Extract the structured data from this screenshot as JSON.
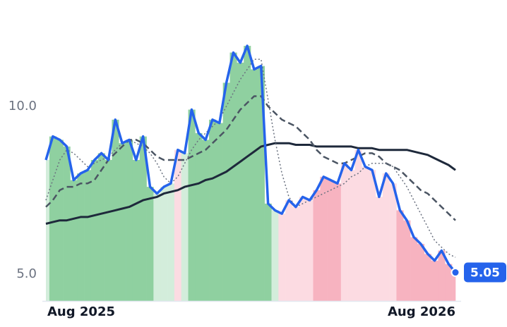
{
  "chart_data": {
    "type": "line",
    "categories": [
      "Aug 2025",
      null,
      null,
      null,
      null,
      null,
      null,
      null,
      null,
      null,
      null,
      null,
      null,
      null,
      null,
      null,
      null,
      null,
      null,
      null,
      null,
      null,
      null,
      null,
      null,
      null,
      null,
      null,
      null,
      null,
      null,
      null,
      null,
      null,
      null,
      null,
      null,
      null,
      null,
      null,
      null,
      null,
      null,
      null,
      null,
      null,
      null,
      null,
      null,
      null,
      null,
      null,
      null,
      null,
      null,
      null,
      null,
      null,
      null,
      "Aug 2026"
    ],
    "ylim": [
      4.2,
      12.2
    ],
    "yticks": [
      {
        "value": 5,
        "label": "5.0"
      },
      {
        "value": 10,
        "label": "10.0"
      }
    ],
    "grid": false,
    "bar_colors": [
      "#d3eddb",
      "#8fd0a0",
      "#8fd0a0",
      "#8fd0a0",
      "#8fd0a0",
      "#8fd0a0",
      "#8fd0a0",
      "#8fd0a0",
      "#8fd0a0",
      "#8fd0a0",
      "#8fd0a0",
      "#8fd0a0",
      "#8fd0a0",
      "#8fd0a0",
      "#8fd0a0",
      "#8fd0a0",
      "#d3eddb",
      "#d3eddb",
      "#d3eddb",
      "#fcdbe2",
      "#d3eddb",
      "#8fd0a0",
      "#8fd0a0",
      "#8fd0a0",
      "#8fd0a0",
      "#8fd0a0",
      "#8fd0a0",
      "#8fd0a0",
      "#8fd0a0",
      "#8fd0a0",
      "#8fd0a0",
      "#8fd0a0",
      "#8fd0a0",
      "#d3eddb",
      "#fcdbe2",
      "#fcdbe2",
      "#fcdbe2",
      "#fcdbe2",
      "#fcdbe2",
      "#f7b3c0",
      "#f7b3c0",
      "#f7b3c0",
      "#f7b3c0",
      "#fcdbe2",
      "#fcdbe2",
      "#fcdbe2",
      "#fcdbe2",
      "#fcdbe2",
      "#fcdbe2",
      "#fcdbe2",
      "#fcdbe2",
      "#f7b3c0",
      "#f7b3c0",
      "#f7b3c0",
      "#f7b3c0",
      "#f7b3c0",
      "#f7b3c0",
      "#f7b3c0",
      "#f7b3c0",
      "#f7b3c0"
    ],
    "series": [
      {
        "color": "#2563eb",
        "style": "solid",
        "width": 3.5,
        "values": [
          8.4,
          9.1,
          9.0,
          8.8,
          7.8,
          8.0,
          8.1,
          8.4,
          8.6,
          8.4,
          9.6,
          8.9,
          9.0,
          8.4,
          9.1,
          7.6,
          7.4,
          7.6,
          7.7,
          8.7,
          8.6,
          9.9,
          9.2,
          9.0,
          9.6,
          9.5,
          10.7,
          11.6,
          11.3,
          11.8,
          11.1,
          11.2,
          7.1,
          6.9,
          6.8,
          7.2,
          7.0,
          7.3,
          7.2,
          7.5,
          7.9,
          7.8,
          7.7,
          8.3,
          8.1,
          8.7,
          8.2,
          8.1,
          7.3,
          8.0,
          7.7,
          6.9,
          6.6,
          6.1,
          5.9,
          5.6,
          5.4,
          5.7,
          5.3,
          5.05
        ]
      },
      {
        "color": "#6b7280",
        "style": "dotted",
        "width": 1.5,
        "values": [
          7.2,
          7.8,
          8.4,
          8.7,
          8.6,
          8.4,
          8.2,
          8.3,
          8.4,
          8.5,
          8.7,
          8.9,
          9.0,
          8.9,
          8.8,
          8.6,
          8.3,
          7.9,
          7.7,
          7.9,
          8.3,
          8.7,
          9.0,
          9.2,
          9.4,
          9.6,
          10.0,
          10.4,
          10.8,
          11.1,
          11.4,
          11.4,
          10.2,
          9.0,
          8.0,
          7.3,
          7.0,
          7.1,
          7.2,
          7.3,
          7.4,
          7.5,
          7.6,
          7.7,
          7.9,
          8.0,
          8.2,
          8.3,
          8.3,
          8.3,
          8.2,
          7.9,
          7.6,
          7.2,
          6.8,
          6.4,
          6.0,
          5.8,
          5.6,
          5.5
        ]
      },
      {
        "color": "#4b5563",
        "style": "dashed",
        "width": 2.5,
        "values": [
          7.0,
          7.2,
          7.5,
          7.6,
          7.6,
          7.7,
          7.7,
          7.8,
          8.1,
          8.4,
          8.6,
          8.8,
          9.0,
          9.0,
          8.9,
          8.7,
          8.5,
          8.4,
          8.4,
          8.4,
          8.4,
          8.5,
          8.6,
          8.7,
          8.9,
          9.1,
          9.3,
          9.6,
          9.9,
          10.1,
          10.3,
          10.3,
          10.0,
          9.8,
          9.6,
          9.5,
          9.4,
          9.2,
          9.0,
          8.7,
          8.5,
          8.4,
          8.3,
          8.3,
          8.4,
          8.5,
          8.6,
          8.6,
          8.5,
          8.3,
          8.2,
          8.1,
          7.9,
          7.7,
          7.5,
          7.4,
          7.2,
          7.0,
          6.8,
          6.6
        ]
      },
      {
        "color": "#1e293b",
        "style": "solid",
        "width": 3,
        "values": [
          6.5,
          6.55,
          6.6,
          6.6,
          6.65,
          6.7,
          6.7,
          6.75,
          6.8,
          6.85,
          6.9,
          6.95,
          7.0,
          7.1,
          7.2,
          7.25,
          7.3,
          7.4,
          7.45,
          7.5,
          7.6,
          7.65,
          7.7,
          7.8,
          7.85,
          7.95,
          8.05,
          8.2,
          8.35,
          8.5,
          8.65,
          8.8,
          8.85,
          8.9,
          8.9,
          8.9,
          8.85,
          8.85,
          8.85,
          8.8,
          8.8,
          8.8,
          8.8,
          8.8,
          8.8,
          8.75,
          8.75,
          8.75,
          8.7,
          8.7,
          8.7,
          8.7,
          8.7,
          8.65,
          8.6,
          8.55,
          8.45,
          8.35,
          8.25,
          8.1
        ]
      }
    ]
  }
}
